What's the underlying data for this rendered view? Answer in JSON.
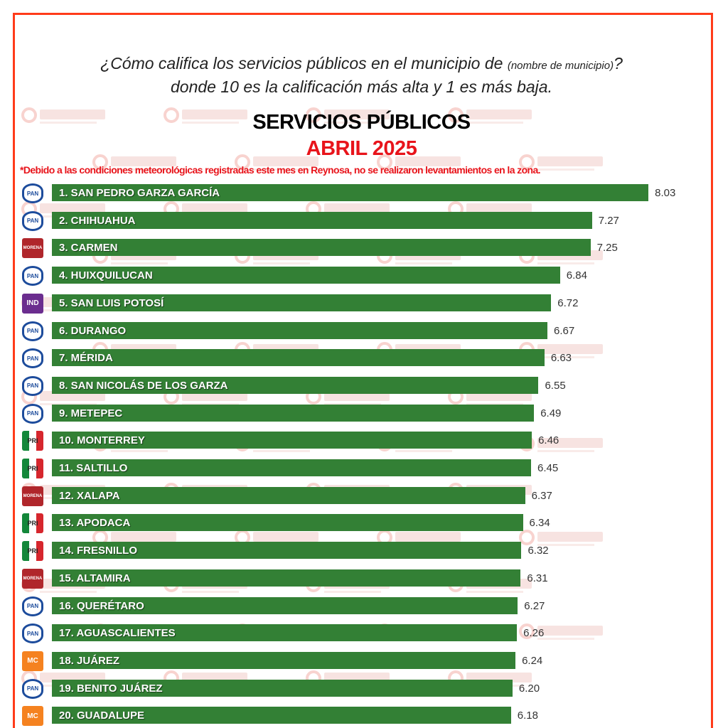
{
  "watermark": "RUBRUM",
  "question": {
    "line1_main": "¿Cómo califica los servicios públicos en el municipio de ",
    "line1_small": "(nombre de municipio)",
    "line1_end": "?",
    "line2": "donde 10 es la calificación más alta y 1 es más baja."
  },
  "colors": {
    "bar": "#338035",
    "frame": "#ff3b1a",
    "accent_red": "#e8141b"
  },
  "chart_data": {
    "type": "bar",
    "orientation": "horizontal",
    "title": "SERVICIOS PÚBLICOS",
    "subtitle": "ABRIL 2025",
    "note": "*Debido a las condiciones meteorológicas registradas este mes en Reynosa, no se realizaron levantamientos en la zona.",
    "xlim": [
      0,
      10
    ],
    "categories": [
      "1. SAN PEDRO GARZA GARCÍA",
      "2. CHIHUAHUA",
      "3. CARMEN",
      "4. HUIXQUILUCAN",
      "5. SAN LUIS POTOSÍ",
      "6. DURANGO",
      "7. MÉRIDA",
      "8. SAN NICOLÁS DE LOS GARZA",
      "9. METEPEC",
      "10. MONTERREY",
      "11. SALTILLO",
      "12. XALAPA",
      "13. APODACA",
      "14. FRESNILLO",
      "15. ALTAMIRA",
      "16. QUERÉTARO",
      "17. AGUASCALIENTES",
      "18. JUÁREZ",
      "19. BENITO JUÁREZ",
      "20. GUADALUPE"
    ],
    "values": [
      8.03,
      7.27,
      7.25,
      6.84,
      6.72,
      6.67,
      6.63,
      6.55,
      6.49,
      6.46,
      6.45,
      6.37,
      6.34,
      6.32,
      6.31,
      6.27,
      6.26,
      6.24,
      6.2,
      6.18
    ],
    "labels": [
      "8.03",
      "7.27",
      "7.25",
      "6.84",
      "6.72",
      "6.67",
      "6.63",
      "6.55",
      "6.49",
      "6.46",
      "6.45",
      "6.37",
      "6.34",
      "6.32",
      "6.31",
      "6.27",
      "6.26",
      "6.24",
      "6.20",
      "6.18"
    ],
    "parties": [
      "PAN",
      "PAN",
      "MORENA",
      "PAN",
      "IND",
      "PAN",
      "PAN",
      "PAN",
      "PAN",
      "PRI",
      "PRI",
      "MORENA",
      "PRI",
      "PRI",
      "MORENA",
      "PAN",
      "PAN",
      "MC",
      "PAN",
      "MC"
    ]
  },
  "party_logo_text": {
    "PAN": "PAN",
    "MORENA": "morena",
    "PRI": "PRI",
    "IND": "I",
    "MC": "✕"
  }
}
